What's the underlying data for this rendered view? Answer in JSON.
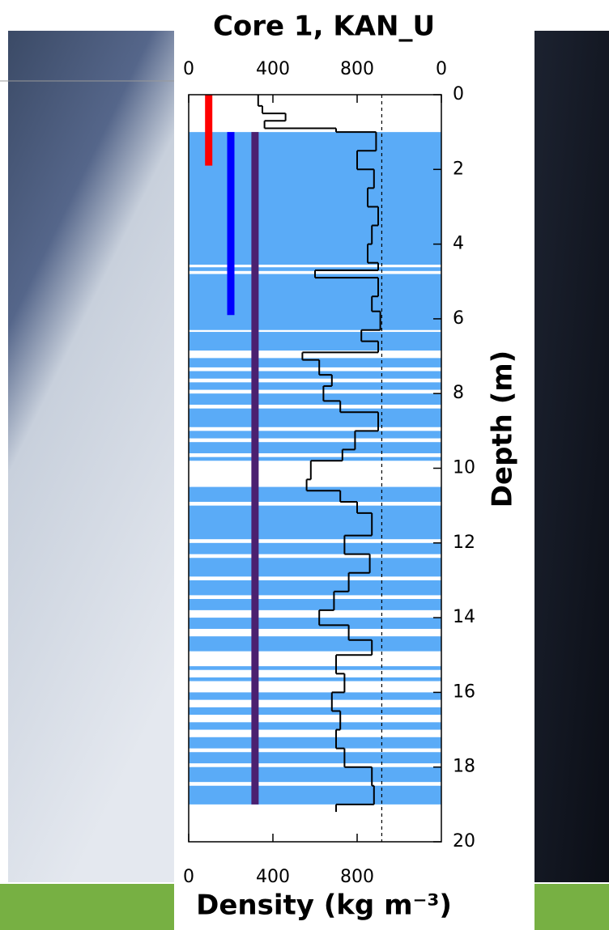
{
  "chart_data": {
    "type": "density-profile",
    "title": "Core 1, KAN_U",
    "xlabel": "Density (kg m⁻³)",
    "ylabel": "Depth (m)",
    "xlim": [
      0,
      1200
    ],
    "ylim": [
      0,
      20
    ],
    "xticks": [
      0,
      400,
      800
    ],
    "x2ticks": [
      0,
      400,
      800,
      {
        "value": 1200,
        "label": "0"
      }
    ],
    "yticks": [
      0,
      2,
      4,
      6,
      8,
      10,
      12,
      14,
      16,
      18,
      20
    ],
    "reference_line": 917,
    "line_color": "#000000",
    "ice_color": "#5aabf7",
    "depth_edges": [
      0,
      0.3,
      0.5,
      0.7,
      0.9,
      1.0,
      1.5,
      2.0,
      2.5,
      3.0,
      3.5,
      4.0,
      4.5,
      4.7,
      4.9,
      5.4,
      5.8,
      6.3,
      6.6,
      6.9,
      7.1,
      7.5,
      7.8,
      8.2,
      8.5,
      9.0,
      9.5,
      9.8,
      10.3,
      10.6,
      10.9,
      11.2,
      11.8,
      12.3,
      12.8,
      13.3,
      13.8,
      14.2,
      14.6,
      15.0,
      15.5,
      16.0,
      16.5,
      17.0,
      17.5,
      18.0,
      18.5,
      19.0,
      19.2
    ],
    "values": [
      330,
      350,
      460,
      360,
      700,
      890,
      800,
      880,
      850,
      900,
      870,
      850,
      900,
      600,
      900,
      870,
      910,
      820,
      900,
      540,
      620,
      680,
      640,
      720,
      900,
      790,
      730,
      580,
      560,
      720,
      800,
      870,
      740,
      860,
      760,
      690,
      620,
      760,
      870,
      700,
      740,
      680,
      720,
      700,
      740,
      870,
      880,
      700
    ],
    "ice_layers": [
      [
        1.0,
        4.55
      ],
      [
        4.62,
        4.72
      ],
      [
        4.8,
        6.3
      ],
      [
        6.35,
        6.85
      ],
      [
        7.05,
        7.3
      ],
      [
        7.4,
        7.6
      ],
      [
        7.7,
        7.9
      ],
      [
        8.0,
        8.3
      ],
      [
        8.4,
        8.9
      ],
      [
        9.0,
        9.2
      ],
      [
        9.3,
        9.6
      ],
      [
        9.7,
        9.8
      ],
      [
        10.5,
        10.9
      ],
      [
        11.0,
        11.9
      ],
      [
        12.0,
        12.3
      ],
      [
        12.4,
        12.9
      ],
      [
        13.0,
        13.4
      ],
      [
        13.5,
        13.8
      ],
      [
        14.0,
        14.3
      ],
      [
        14.5,
        14.9
      ],
      [
        15.3,
        15.4
      ],
      [
        15.6,
        15.7
      ],
      [
        16.0,
        16.2
      ],
      [
        16.4,
        16.6
      ],
      [
        16.8,
        17.0
      ],
      [
        17.2,
        17.5
      ],
      [
        17.6,
        17.9
      ],
      [
        18.0,
        18.4
      ],
      [
        18.5,
        19.0
      ]
    ],
    "markers": [
      {
        "color": "#ff0000",
        "x": 95,
        "depth": [
          0,
          1.9
        ]
      },
      {
        "color": "#0000ff",
        "x": 200,
        "depth": [
          1.0,
          5.9
        ]
      },
      {
        "color": "#4b2070",
        "x": 315,
        "depth": [
          1.0,
          19.0
        ]
      }
    ]
  }
}
